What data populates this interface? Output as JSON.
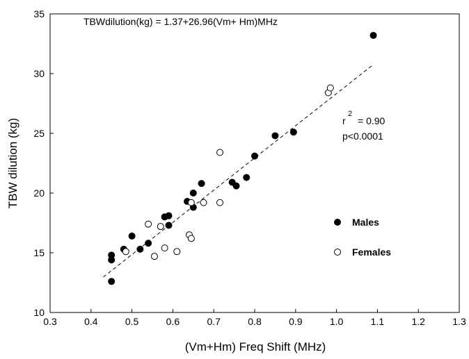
{
  "chart_data": {
    "type": "scatter",
    "xlabel": "(Vm+Hm) Freq Shift (MHz)",
    "ylabel": "TBW dilution (kg)",
    "xlim": [
      0.3,
      1.3
    ],
    "ylim": [
      10,
      35
    ],
    "xticks": [
      "0.3",
      "0.4",
      "0.5",
      "0.6",
      "0.7",
      "0.8",
      "0.9",
      "1.0",
      "1.1",
      "1.2",
      "1.3"
    ],
    "yticks": [
      "10",
      "15",
      "20",
      "25",
      "30",
      "35"
    ],
    "grid": false,
    "legend_position": "lower-right",
    "annotations": {
      "equation": "TBWdilution(kg) = 1.37+26.96(Vm+ Hm)MHz",
      "r_squared_base": "r",
      "r_squared_exp": "2",
      "r_squared_value": "=  0.90",
      "p_value": "p<0.0001"
    },
    "regression": {
      "intercept": 1.37,
      "slope": 26.96,
      "x_range": [
        0.43,
        1.09
      ],
      "style": "dashed"
    },
    "series": [
      {
        "name": "Males",
        "marker": "filled-circle",
        "color": "#000000",
        "points": [
          [
            0.45,
            14.8
          ],
          [
            0.45,
            14.4
          ],
          [
            0.45,
            12.6
          ],
          [
            0.48,
            15.3
          ],
          [
            0.5,
            16.4
          ],
          [
            0.52,
            15.3
          ],
          [
            0.54,
            15.8
          ],
          [
            0.58,
            18.0
          ],
          [
            0.59,
            18.1
          ],
          [
            0.59,
            17.3
          ],
          [
            0.635,
            19.3
          ],
          [
            0.65,
            20.0
          ],
          [
            0.65,
            18.8
          ],
          [
            0.67,
            20.8
          ],
          [
            0.745,
            20.9
          ],
          [
            0.755,
            20.6
          ],
          [
            0.78,
            21.3
          ],
          [
            0.8,
            23.1
          ],
          [
            0.85,
            24.8
          ],
          [
            0.895,
            25.1
          ],
          [
            1.09,
            33.2
          ]
        ]
      },
      {
        "name": "Females",
        "marker": "open-circle",
        "color": "#000000",
        "points": [
          [
            0.485,
            15.1
          ],
          [
            0.54,
            17.4
          ],
          [
            0.555,
            14.7
          ],
          [
            0.57,
            17.2
          ],
          [
            0.58,
            15.4
          ],
          [
            0.61,
            15.1
          ],
          [
            0.64,
            16.5
          ],
          [
            0.645,
            16.2
          ],
          [
            0.645,
            19.2
          ],
          [
            0.675,
            19.2
          ],
          [
            0.715,
            23.4
          ],
          [
            0.715,
            19.2
          ],
          [
            0.98,
            28.4
          ],
          [
            0.985,
            28.8
          ]
        ]
      }
    ]
  }
}
